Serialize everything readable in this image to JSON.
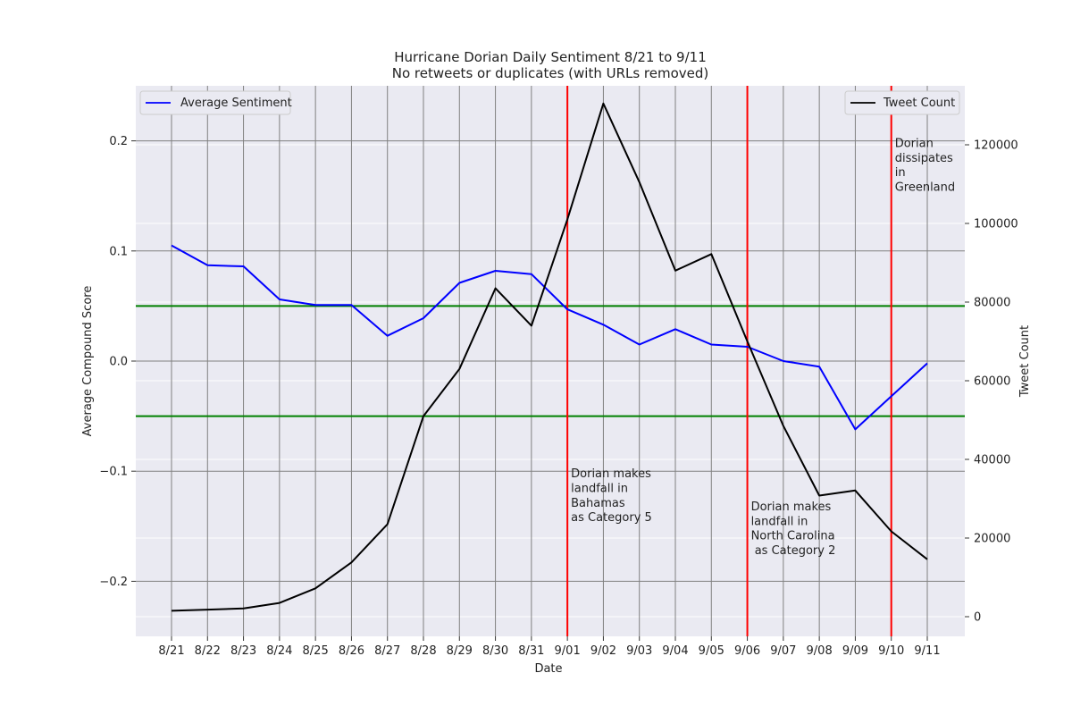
{
  "chart_data": {
    "type": "line",
    "title": "Hurricane Dorian Daily Sentiment 8/21 to 9/11",
    "subtitle": "No retweets or duplicates (with URLs removed)",
    "xlabel": "Date",
    "ylabel": "Average Compound Score",
    "y2label": "Tweet Count",
    "categories": [
      "8/21",
      "8/22",
      "8/23",
      "8/24",
      "8/25",
      "8/26",
      "8/27",
      "8/28",
      "8/29",
      "8/30",
      "8/31",
      "9/01",
      "9/02",
      "9/03",
      "9/04",
      "9/05",
      "9/06",
      "9/07",
      "9/08",
      "9/09",
      "9/10",
      "9/11"
    ],
    "ylim": [
      -0.25,
      0.25
    ],
    "y_ticks": [
      -0.2,
      -0.1,
      0.0,
      0.1,
      0.2
    ],
    "y_tick_labels": [
      "−0.2",
      "−0.1",
      "0.0",
      "0.1",
      "0.2"
    ],
    "y2lim": [
      -5000,
      135000
    ],
    "y2_ticks": [
      0,
      20000,
      40000,
      60000,
      80000,
      100000,
      120000
    ],
    "y2_tick_labels": [
      "0",
      "20000",
      "40000",
      "60000",
      "80000",
      "100000",
      "120000"
    ],
    "grid": true,
    "series": [
      {
        "name": "Average Sentiment",
        "axis": "left",
        "color": "#0000ff",
        "legend_position": "top-left",
        "values": [
          0.105,
          0.087,
          0.086,
          0.056,
          0.051,
          0.051,
          0.023,
          0.039,
          0.071,
          0.082,
          0.079,
          0.047,
          0.033,
          0.015,
          0.029,
          0.015,
          0.013,
          0.0,
          -0.005,
          -0.062,
          -0.032,
          -0.002
        ]
      },
      {
        "name": "Tweet Count",
        "axis": "right",
        "color": "#000000",
        "legend_position": "top-right",
        "values": [
          1500,
          1800,
          2100,
          3500,
          7200,
          13800,
          23500,
          51000,
          63000,
          83500,
          74000,
          101000,
          130500,
          110500,
          88000,
          92200,
          70000,
          48500,
          30800,
          32100,
          21700,
          14600
        ]
      }
    ],
    "horizontal_lines": [
      {
        "value": 0.05,
        "axis": "left",
        "color": "#008000"
      },
      {
        "value": -0.05,
        "axis": "left",
        "color": "#008000"
      }
    ],
    "vertical_lines": [
      {
        "category": "9/01",
        "color": "#ff0000"
      },
      {
        "category": "9/06",
        "color": "#ff0000"
      },
      {
        "category": "9/10",
        "color": "#ff0000"
      }
    ],
    "annotations": [
      {
        "category": "9/01",
        "y": -0.102,
        "lines": [
          "Dorian makes",
          "landfall in",
          "Bahamas",
          "as Category 5"
        ]
      },
      {
        "category": "9/06",
        "y": -0.132,
        "lines": [
          "Dorian makes",
          "landfall in",
          "North Carolina",
          " as Category 2"
        ]
      },
      {
        "category": "9/10",
        "y": 0.198,
        "lines": [
          "Dorian",
          "dissipates",
          "in",
          "Greenland"
        ]
      }
    ]
  }
}
